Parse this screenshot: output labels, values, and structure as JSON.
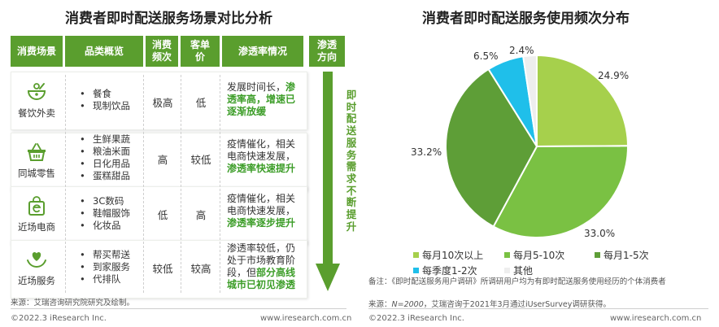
{
  "left": {
    "title": "消费者即时配送服务场景对比分析",
    "headers": [
      "消费场景",
      "品类概览",
      "消费频次",
      "客单价",
      "渗透率情况",
      "渗透方向"
    ],
    "rows": [
      {
        "scene": "餐饮外卖",
        "icon": "bowl-icon",
        "categories": [
          "餐食",
          "现制饮品"
        ],
        "frequency": "极高",
        "price": "低",
        "desc_plain": "发展时间长，",
        "desc_green": "渗透率高，增速已逐渐放缓"
      },
      {
        "scene": "同城零售",
        "icon": "basket-icon",
        "categories": [
          "生鲜果蔬",
          "粮油米面",
          "日化用品",
          "蛋糕甜品"
        ],
        "frequency": "高",
        "price": "较低",
        "desc_plain": "疫情催化，相关电商快速发展，",
        "desc_green": "渗透率快速提升"
      },
      {
        "scene": "近场电商",
        "icon": "shopping-bag-icon",
        "categories": [
          "3C数码",
          "鞋帽服饰",
          "化妆品"
        ],
        "frequency": "低",
        "price": "高",
        "desc_plain": "疫情催化，相关电商快速发展，",
        "desc_green": "渗透率逐步提升"
      },
      {
        "scene": "近场服务",
        "icon": "heart-hands-icon",
        "categories": [
          "帮买帮送",
          "到家服务",
          "代排队"
        ],
        "frequency": "较低",
        "price": "较高",
        "desc_plain": "渗透率较低，仍处于市场教育阶段，但",
        "desc_green": "部分高线城市已初见渗透"
      }
    ],
    "direction_text": "即时配送服务需求不断提升",
    "source": "来源：艾瑞咨询研究院研究及绘制。",
    "footer_left": "©2022.3 iResearch Inc.",
    "footer_right": "www.iresearch.com.cn"
  },
  "right": {
    "note": "备注：《即时配送服务用户调研》所调研用户均为有即时配送服务使用经历的个体消费者",
    "source_prefix": "来源：",
    "source_italic": "N=2000",
    "source_suffix": "，艾瑞咨询于2021年3月通过iUserSurvey调研获得。",
    "footer_left": "©2022.3 iResearch Inc.",
    "footer_right": "www.iresearch.com.cn"
  },
  "chart_data": {
    "type": "pie",
    "title": "消费者即时配送服务使用频次分布",
    "categories": [
      "每月10次以上",
      "每月5-10次",
      "每月1-5次",
      "每季度1-2次",
      "其他"
    ],
    "values": [
      24.9,
      33.0,
      33.2,
      6.5,
      2.4
    ],
    "value_labels": [
      "24.9%",
      "33.0%",
      "33.2%",
      "6.5%",
      "2.4%"
    ],
    "colors": [
      "#a6d04c",
      "#7ac143",
      "#5e9e37",
      "#1fbfea",
      "#eeeeee"
    ],
    "legend_position": "bottom-left"
  }
}
